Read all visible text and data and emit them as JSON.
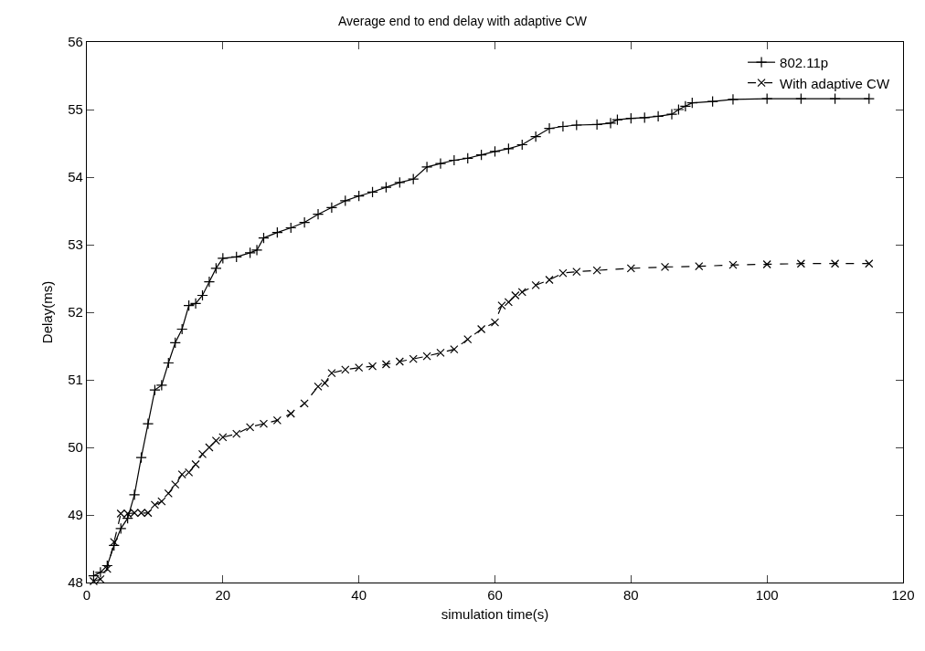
{
  "chart_data": {
    "type": "line",
    "title": "Average end to end delay with adaptive CW",
    "xlabel": "simulation time(s)",
    "ylabel": "Delay(ms)",
    "xlim": [
      0,
      120
    ],
    "xticks": [
      0,
      20,
      40,
      60,
      80,
      100,
      120
    ],
    "ylim": [
      48,
      56
    ],
    "yticks": [
      48,
      49,
      50,
      51,
      52,
      53,
      54,
      55,
      56
    ],
    "grid": false,
    "legend": "top right",
    "series": [
      {
        "name": "802.11p",
        "color": "#000000",
        "marker": "cross",
        "line_style": "solid",
        "x": [
          1,
          2,
          3,
          4,
          5,
          6,
          7,
          8,
          9,
          10,
          11,
          12,
          13,
          14,
          15,
          16,
          17,
          18,
          19,
          20,
          22,
          24,
          25,
          26,
          28,
          30,
          32,
          34,
          36,
          38,
          40,
          42,
          44,
          46,
          48,
          50,
          52,
          54,
          56,
          58,
          60,
          62,
          64,
          66,
          68,
          70,
          72,
          75,
          77,
          78,
          80,
          82,
          84,
          86,
          87,
          88,
          89,
          92,
          95,
          100,
          105,
          110,
          115
        ],
        "values": [
          48.1,
          48.15,
          48.25,
          48.55,
          48.8,
          48.95,
          49.3,
          49.85,
          50.35,
          50.85,
          50.92,
          51.25,
          51.55,
          51.75,
          52.1,
          52.13,
          52.25,
          52.45,
          52.65,
          52.8,
          52.82,
          52.88,
          52.92,
          53.1,
          53.18,
          53.25,
          53.33,
          53.45,
          53.55,
          53.65,
          53.72,
          53.78,
          53.85,
          53.92,
          53.97,
          54.15,
          54.2,
          54.25,
          54.28,
          54.33,
          54.38,
          54.42,
          54.48,
          54.6,
          54.72,
          54.75,
          54.77,
          54.78,
          54.8,
          54.85,
          54.87,
          54.88,
          54.9,
          54.93,
          55.0,
          55.05,
          55.1,
          55.12,
          55.15,
          55.16,
          55.16,
          55.16,
          55.16
        ]
      },
      {
        "name": "With adaptive CW",
        "color": "#000000",
        "marker": "x",
        "line_style": "dashed",
        "x": [
          1,
          2,
          3,
          4,
          5,
          6,
          7,
          8,
          9,
          10,
          11,
          12,
          13,
          14,
          15,
          16,
          17,
          18,
          19,
          20,
          22,
          24,
          26,
          28,
          30,
          32,
          34,
          35,
          36,
          38,
          40,
          42,
          44,
          46,
          48,
          50,
          52,
          54,
          56,
          58,
          60,
          61,
          62,
          63,
          64,
          66,
          68,
          70,
          72,
          75,
          80,
          85,
          90,
          95,
          100,
          105,
          110,
          115
        ],
        "values": [
          48.02,
          48.05,
          48.2,
          48.6,
          49.02,
          49.02,
          49.03,
          49.03,
          49.03,
          49.15,
          49.2,
          49.32,
          49.45,
          49.6,
          49.63,
          49.75,
          49.9,
          50.0,
          50.1,
          50.15,
          50.2,
          50.3,
          50.35,
          50.4,
          50.5,
          50.65,
          50.9,
          50.95,
          51.1,
          51.15,
          51.18,
          51.2,
          51.23,
          51.27,
          51.31,
          51.35,
          51.4,
          51.45,
          51.6,
          51.75,
          51.85,
          52.1,
          52.15,
          52.25,
          52.3,
          52.4,
          52.48,
          52.58,
          52.6,
          52.62,
          52.65,
          52.67,
          52.68,
          52.7,
          52.71,
          52.72,
          52.72,
          52.72
        ]
      }
    ]
  }
}
